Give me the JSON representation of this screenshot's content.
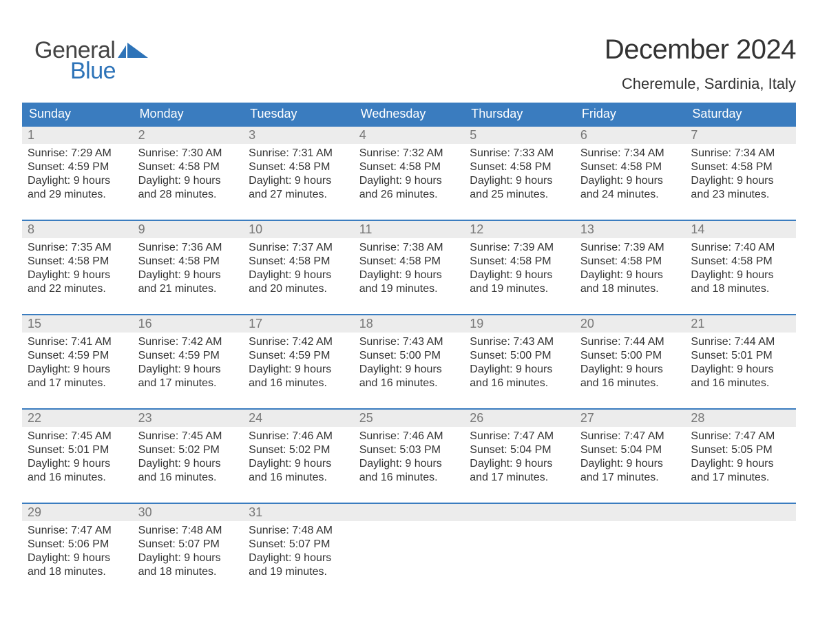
{
  "brand": {
    "word1": "General",
    "word2": "Blue",
    "word1_color": "#444444",
    "word2_color": "#2d73b8",
    "flag_color": "#2d73b8"
  },
  "title": {
    "month_year": "December 2024",
    "location": "Cheremule, Sardinia, Italy",
    "title_fontsize": 40,
    "location_fontsize": 22,
    "text_color": "#333333"
  },
  "calendar": {
    "header_bg": "#3a7cbf",
    "header_text_color": "#ffffff",
    "daynum_bg": "#ececec",
    "daynum_color": "#777777",
    "week_border_color": "#3a7cbf",
    "body_text_color": "#333333",
    "body_fontsize": 16,
    "columns": [
      "Sunday",
      "Monday",
      "Tuesday",
      "Wednesday",
      "Thursday",
      "Friday",
      "Saturday"
    ],
    "weeks": [
      [
        {
          "n": "1",
          "sr": "Sunrise: 7:29 AM",
          "ss": "Sunset: 4:59 PM",
          "d1": "Daylight: 9 hours",
          "d2": "and 29 minutes."
        },
        {
          "n": "2",
          "sr": "Sunrise: 7:30 AM",
          "ss": "Sunset: 4:58 PM",
          "d1": "Daylight: 9 hours",
          "d2": "and 28 minutes."
        },
        {
          "n": "3",
          "sr": "Sunrise: 7:31 AM",
          "ss": "Sunset: 4:58 PM",
          "d1": "Daylight: 9 hours",
          "d2": "and 27 minutes."
        },
        {
          "n": "4",
          "sr": "Sunrise: 7:32 AM",
          "ss": "Sunset: 4:58 PM",
          "d1": "Daylight: 9 hours",
          "d2": "and 26 minutes."
        },
        {
          "n": "5",
          "sr": "Sunrise: 7:33 AM",
          "ss": "Sunset: 4:58 PM",
          "d1": "Daylight: 9 hours",
          "d2": "and 25 minutes."
        },
        {
          "n": "6",
          "sr": "Sunrise: 7:34 AM",
          "ss": "Sunset: 4:58 PM",
          "d1": "Daylight: 9 hours",
          "d2": "and 24 minutes."
        },
        {
          "n": "7",
          "sr": "Sunrise: 7:34 AM",
          "ss": "Sunset: 4:58 PM",
          "d1": "Daylight: 9 hours",
          "d2": "and 23 minutes."
        }
      ],
      [
        {
          "n": "8",
          "sr": "Sunrise: 7:35 AM",
          "ss": "Sunset: 4:58 PM",
          "d1": "Daylight: 9 hours",
          "d2": "and 22 minutes."
        },
        {
          "n": "9",
          "sr": "Sunrise: 7:36 AM",
          "ss": "Sunset: 4:58 PM",
          "d1": "Daylight: 9 hours",
          "d2": "and 21 minutes."
        },
        {
          "n": "10",
          "sr": "Sunrise: 7:37 AM",
          "ss": "Sunset: 4:58 PM",
          "d1": "Daylight: 9 hours",
          "d2": "and 20 minutes."
        },
        {
          "n": "11",
          "sr": "Sunrise: 7:38 AM",
          "ss": "Sunset: 4:58 PM",
          "d1": "Daylight: 9 hours",
          "d2": "and 19 minutes."
        },
        {
          "n": "12",
          "sr": "Sunrise: 7:39 AM",
          "ss": "Sunset: 4:58 PM",
          "d1": "Daylight: 9 hours",
          "d2": "and 19 minutes."
        },
        {
          "n": "13",
          "sr": "Sunrise: 7:39 AM",
          "ss": "Sunset: 4:58 PM",
          "d1": "Daylight: 9 hours",
          "d2": "and 18 minutes."
        },
        {
          "n": "14",
          "sr": "Sunrise: 7:40 AM",
          "ss": "Sunset: 4:58 PM",
          "d1": "Daylight: 9 hours",
          "d2": "and 18 minutes."
        }
      ],
      [
        {
          "n": "15",
          "sr": "Sunrise: 7:41 AM",
          "ss": "Sunset: 4:59 PM",
          "d1": "Daylight: 9 hours",
          "d2": "and 17 minutes."
        },
        {
          "n": "16",
          "sr": "Sunrise: 7:42 AM",
          "ss": "Sunset: 4:59 PM",
          "d1": "Daylight: 9 hours",
          "d2": "and 17 minutes."
        },
        {
          "n": "17",
          "sr": "Sunrise: 7:42 AM",
          "ss": "Sunset: 4:59 PM",
          "d1": "Daylight: 9 hours",
          "d2": "and 16 minutes."
        },
        {
          "n": "18",
          "sr": "Sunrise: 7:43 AM",
          "ss": "Sunset: 5:00 PM",
          "d1": "Daylight: 9 hours",
          "d2": "and 16 minutes."
        },
        {
          "n": "19",
          "sr": "Sunrise: 7:43 AM",
          "ss": "Sunset: 5:00 PM",
          "d1": "Daylight: 9 hours",
          "d2": "and 16 minutes."
        },
        {
          "n": "20",
          "sr": "Sunrise: 7:44 AM",
          "ss": "Sunset: 5:00 PM",
          "d1": "Daylight: 9 hours",
          "d2": "and 16 minutes."
        },
        {
          "n": "21",
          "sr": "Sunrise: 7:44 AM",
          "ss": "Sunset: 5:01 PM",
          "d1": "Daylight: 9 hours",
          "d2": "and 16 minutes."
        }
      ],
      [
        {
          "n": "22",
          "sr": "Sunrise: 7:45 AM",
          "ss": "Sunset: 5:01 PM",
          "d1": "Daylight: 9 hours",
          "d2": "and 16 minutes."
        },
        {
          "n": "23",
          "sr": "Sunrise: 7:45 AM",
          "ss": "Sunset: 5:02 PM",
          "d1": "Daylight: 9 hours",
          "d2": "and 16 minutes."
        },
        {
          "n": "24",
          "sr": "Sunrise: 7:46 AM",
          "ss": "Sunset: 5:02 PM",
          "d1": "Daylight: 9 hours",
          "d2": "and 16 minutes."
        },
        {
          "n": "25",
          "sr": "Sunrise: 7:46 AM",
          "ss": "Sunset: 5:03 PM",
          "d1": "Daylight: 9 hours",
          "d2": "and 16 minutes."
        },
        {
          "n": "26",
          "sr": "Sunrise: 7:47 AM",
          "ss": "Sunset: 5:04 PM",
          "d1": "Daylight: 9 hours",
          "d2": "and 17 minutes."
        },
        {
          "n": "27",
          "sr": "Sunrise: 7:47 AM",
          "ss": "Sunset: 5:04 PM",
          "d1": "Daylight: 9 hours",
          "d2": "and 17 minutes."
        },
        {
          "n": "28",
          "sr": "Sunrise: 7:47 AM",
          "ss": "Sunset: 5:05 PM",
          "d1": "Daylight: 9 hours",
          "d2": "and 17 minutes."
        }
      ],
      [
        {
          "n": "29",
          "sr": "Sunrise: 7:47 AM",
          "ss": "Sunset: 5:06 PM",
          "d1": "Daylight: 9 hours",
          "d2": "and 18 minutes."
        },
        {
          "n": "30",
          "sr": "Sunrise: 7:48 AM",
          "ss": "Sunset: 5:07 PM",
          "d1": "Daylight: 9 hours",
          "d2": "and 18 minutes."
        },
        {
          "n": "31",
          "sr": "Sunrise: 7:48 AM",
          "ss": "Sunset: 5:07 PM",
          "d1": "Daylight: 9 hours",
          "d2": "and 19 minutes."
        },
        null,
        null,
        null,
        null
      ]
    ]
  }
}
